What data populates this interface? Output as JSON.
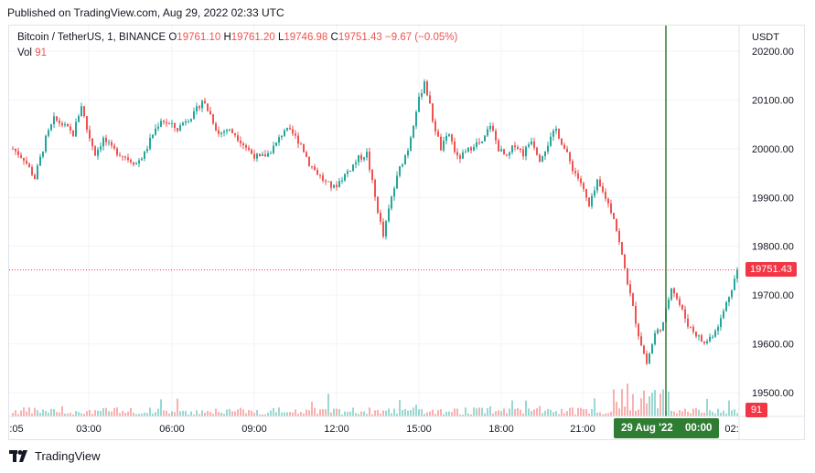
{
  "header": {
    "published": "Published on TradingView.com, Aug 29, 2022 02:33 UTC"
  },
  "legend": {
    "symbol": "Bitcoin / TetherUS, 1, BINANCE",
    "o_label": "O",
    "o_value": "19761.10",
    "h_label": "H",
    "h_value": "19761.20",
    "l_label": "L",
    "l_value": "19746.98",
    "c_label": "C",
    "c_value": "19751.43",
    "change": "−9.67 (−0.05%)",
    "vol_label": "Vol",
    "vol_value": "91"
  },
  "axis": {
    "currency": "USDT"
  },
  "badges": {
    "last_price": "19751.43",
    "last_volume": "91",
    "crosshair_date": "29 Aug '22",
    "crosshair_time": "00:00"
  },
  "branding": {
    "name": "TradingView"
  },
  "colors": {
    "up": "#26a69a",
    "down": "#ef5350",
    "crosshair": "#2e7d32",
    "price_line": "#f23645",
    "grid": "#f0f3fa"
  },
  "chart_data": {
    "type": "candlestick",
    "symbol": "BTCUSDT",
    "interval": "1",
    "y_ticks": [
      19500,
      19600,
      19700,
      19800,
      19900,
      20000,
      20100,
      20200
    ],
    "y_tick_labels": [
      "19500.00",
      "19600.00",
      "19700.00",
      "19800.00",
      "19900.00",
      "20000.00",
      "20100.00",
      "20200.00"
    ],
    "x_tick_labels": [
      ":05",
      "03:00",
      "06:00",
      "09:00",
      "12:00",
      "15:00",
      "18:00",
      "21:00",
      "02:"
    ],
    "ylim": [
      19450,
      20210
    ],
    "last_price": 19751.43,
    "crosshair": "29 Aug '22 00:00",
    "close_path": [
      [
        0,
        20000
      ],
      [
        4,
        19980
      ],
      [
        8,
        19940
      ],
      [
        12,
        20020
      ],
      [
        15,
        20060
      ],
      [
        18,
        20050
      ],
      [
        22,
        20030
      ],
      [
        25,
        20090
      ],
      [
        27,
        20040
      ],
      [
        30,
        19990
      ],
      [
        33,
        20020
      ],
      [
        36,
        20000
      ],
      [
        39,
        19990
      ],
      [
        42,
        19980
      ],
      [
        45,
        19970
      ],
      [
        48,
        19990
      ],
      [
        51,
        20030
      ],
      [
        54,
        20060
      ],
      [
        57,
        20050
      ],
      [
        60,
        20040
      ],
      [
        63,
        20060
      ],
      [
        66,
        20070
      ],
      [
        69,
        20100
      ],
      [
        72,
        20070
      ],
      [
        75,
        20030
      ],
      [
        78,
        20040
      ],
      [
        81,
        20030
      ],
      [
        84,
        20010
      ],
      [
        87,
        19990
      ],
      [
        90,
        19980
      ],
      [
        93,
        19990
      ],
      [
        96,
        20010
      ],
      [
        99,
        20040
      ],
      [
        102,
        20030
      ],
      [
        105,
        20010
      ],
      [
        108,
        19970
      ],
      [
        111,
        19950
      ],
      [
        114,
        19930
      ],
      [
        117,
        19920
      ],
      [
        120,
        19940
      ],
      [
        123,
        19960
      ],
      [
        126,
        19980
      ],
      [
        129,
        19990
      ],
      [
        132,
        19900
      ],
      [
        135,
        19820
      ],
      [
        138,
        19900
      ],
      [
        141,
        19960
      ],
      [
        144,
        20000
      ],
      [
        147,
        20080
      ],
      [
        150,
        20140
      ],
      [
        153,
        20060
      ],
      [
        156,
        20000
      ],
      [
        159,
        20030
      ],
      [
        162,
        19980
      ],
      [
        165,
        19990
      ],
      [
        168,
        20010
      ],
      [
        171,
        20010
      ],
      [
        174,
        20050
      ],
      [
        177,
        20000
      ],
      [
        180,
        19980
      ],
      [
        183,
        20010
      ],
      [
        186,
        19990
      ],
      [
        189,
        20020
      ],
      [
        192,
        19980
      ],
      [
        195,
        20010
      ],
      [
        198,
        20040
      ],
      [
        201,
        20000
      ],
      [
        204,
        19960
      ],
      [
        207,
        19930
      ],
      [
        210,
        19880
      ],
      [
        213,
        19930
      ],
      [
        216,
        19900
      ],
      [
        219,
        19860
      ],
      [
        222,
        19780
      ],
      [
        225,
        19700
      ],
      [
        228,
        19620
      ],
      [
        231,
        19560
      ],
      [
        234,
        19620
      ],
      [
        237,
        19640
      ],
      [
        240,
        19720
      ],
      [
        243,
        19680
      ],
      [
        246,
        19640
      ],
      [
        249,
        19620
      ],
      [
        252,
        19600
      ],
      [
        255,
        19620
      ],
      [
        258,
        19650
      ],
      [
        261,
        19700
      ],
      [
        264,
        19750
      ],
      [
        266,
        19751.43
      ]
    ]
  }
}
